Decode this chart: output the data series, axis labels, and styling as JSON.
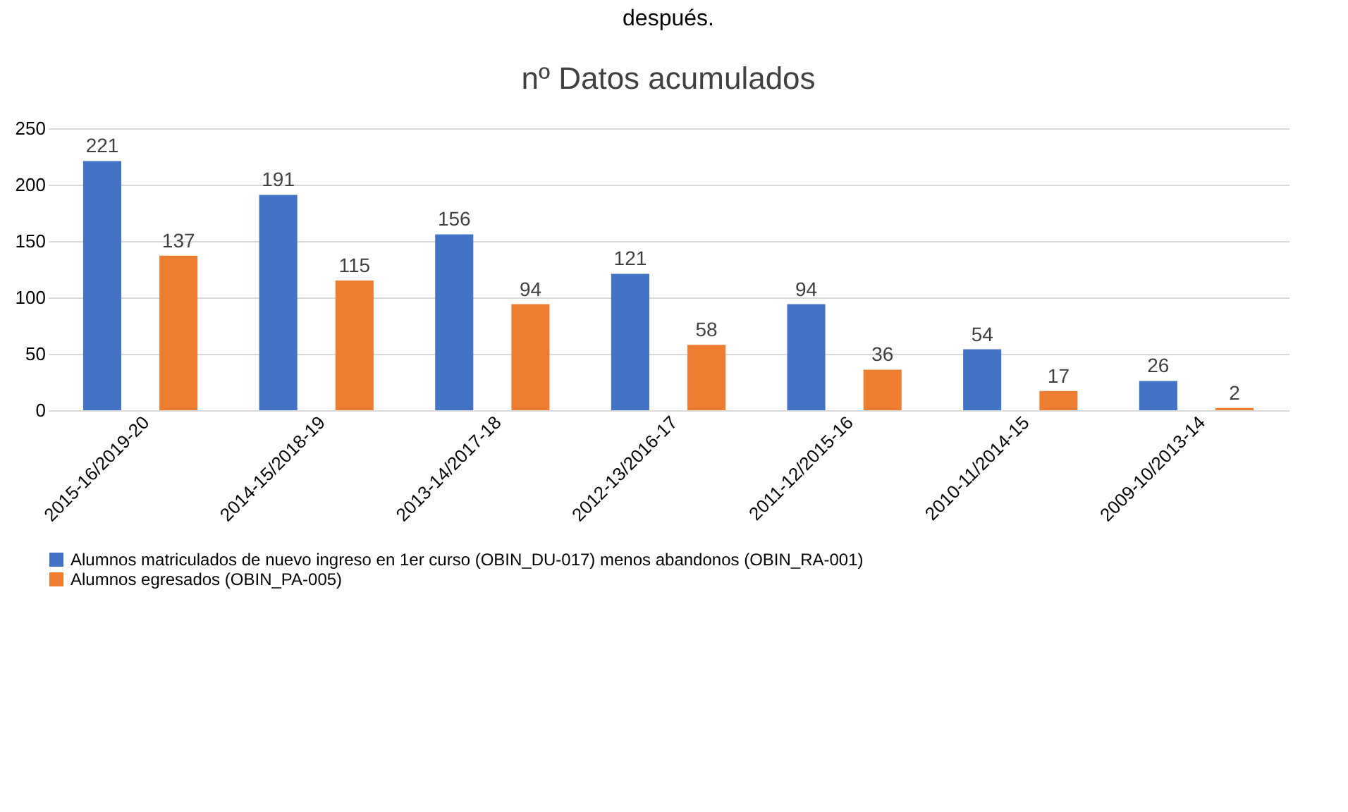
{
  "chart_data": {
    "type": "bar",
    "title": "nº Datos acumulados",
    "annotations": [
      "después."
    ],
    "categories": [
      "2015-16/2019-20",
      "2014-15/2018-19",
      "2013-14/2017-18",
      "2012-13/2016-17",
      "2011-12/2015-16",
      "2010-11/2014-15",
      "2009-10/2013-14"
    ],
    "series": [
      {
        "name": "Alumnos matriculados de nuevo ingreso en 1er curso (OBIN_DU-017) menos abandonos (OBIN_RA-001)",
        "color": "#4472c4",
        "values": [
          221,
          191,
          156,
          121,
          94,
          54,
          26
        ]
      },
      {
        "name": "Alumnos egresados (OBIN_PA-005)",
        "color": "#ed7d31",
        "values": [
          137,
          115,
          94,
          58,
          36,
          17,
          2
        ]
      }
    ],
    "ylim": [
      0,
      250
    ],
    "yticks": [
      0,
      50,
      100,
      150,
      200,
      250
    ],
    "grid": "y",
    "legend": "bottom",
    "data_labels": true
  }
}
